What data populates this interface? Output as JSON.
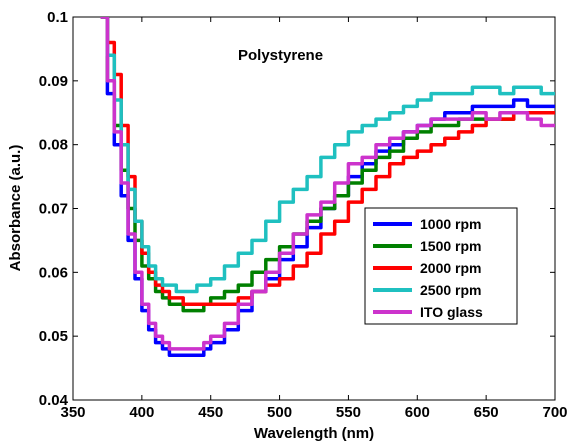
{
  "chart_data": {
    "type": "line",
    "title": "",
    "annotation": "Polystyrene",
    "xlabel": "Wavelength (nm)",
    "ylabel": "Absorbance (a.u.)",
    "xlim": [
      350,
      700
    ],
    "ylim": [
      0.04,
      0.1
    ],
    "xticks": [
      "350",
      "400",
      "450",
      "500",
      "550",
      "600",
      "650",
      "700"
    ],
    "yticks": [
      "0.04",
      "0.05",
      "0.06",
      "0.07",
      "0.08",
      "0.09",
      "0.1"
    ],
    "grid": false,
    "legend_position": "center-right",
    "series": [
      {
        "name": "1000 rpm",
        "color": "#0000ff",
        "x": [
          370,
          375,
          380,
          385,
          390,
          395,
          400,
          405,
          410,
          415,
          420,
          425,
          430,
          435,
          440,
          445,
          450,
          460,
          470,
          480,
          490,
          500,
          510,
          520,
          530,
          540,
          550,
          560,
          570,
          580,
          590,
          600,
          610,
          620,
          630,
          640,
          650,
          660,
          670,
          680,
          690,
          700
        ],
        "y": [
          0.1,
          0.088,
          0.08,
          0.072,
          0.065,
          0.059,
          0.054,
          0.051,
          0.049,
          0.048,
          0.047,
          0.047,
          0.047,
          0.047,
          0.047,
          0.048,
          0.049,
          0.051,
          0.054,
          0.057,
          0.059,
          0.062,
          0.064,
          0.067,
          0.07,
          0.072,
          0.075,
          0.077,
          0.079,
          0.08,
          0.082,
          0.083,
          0.084,
          0.085,
          0.085,
          0.086,
          0.086,
          0.086,
          0.087,
          0.086,
          0.086,
          0.086
        ]
      },
      {
        "name": "1500 rpm",
        "color": "#008000",
        "x": [
          370,
          375,
          380,
          385,
          390,
          395,
          400,
          405,
          410,
          415,
          420,
          425,
          430,
          435,
          440,
          445,
          450,
          460,
          470,
          480,
          490,
          500,
          510,
          520,
          530,
          540,
          550,
          560,
          570,
          580,
          590,
          600,
          610,
          620,
          630,
          640,
          650,
          660,
          670,
          680,
          690,
          700
        ],
        "y": [
          0.1,
          0.09,
          0.083,
          0.076,
          0.07,
          0.065,
          0.061,
          0.059,
          0.057,
          0.056,
          0.055,
          0.055,
          0.054,
          0.054,
          0.054,
          0.055,
          0.056,
          0.057,
          0.058,
          0.06,
          0.062,
          0.064,
          0.066,
          0.068,
          0.07,
          0.072,
          0.074,
          0.076,
          0.078,
          0.079,
          0.081,
          0.082,
          0.083,
          0.083,
          0.084,
          0.084,
          0.084,
          0.084,
          0.085,
          0.085,
          0.085,
          0.085
        ]
      },
      {
        "name": "2000 rpm",
        "color": "#ff0000",
        "x": [
          370,
          375,
          380,
          385,
          390,
          395,
          400,
          405,
          410,
          415,
          420,
          425,
          430,
          435,
          440,
          445,
          450,
          460,
          470,
          480,
          490,
          500,
          510,
          520,
          530,
          540,
          550,
          560,
          570,
          580,
          590,
          600,
          610,
          620,
          630,
          640,
          650,
          660,
          670,
          680,
          690,
          700
        ],
        "y": [
          0.1,
          0.096,
          0.091,
          0.083,
          0.075,
          0.068,
          0.063,
          0.06,
          0.058,
          0.057,
          0.056,
          0.056,
          0.055,
          0.055,
          0.055,
          0.055,
          0.055,
          0.055,
          0.056,
          0.057,
          0.058,
          0.059,
          0.061,
          0.063,
          0.066,
          0.068,
          0.071,
          0.073,
          0.075,
          0.077,
          0.078,
          0.079,
          0.08,
          0.081,
          0.082,
          0.083,
          0.084,
          0.084,
          0.085,
          0.085,
          0.085,
          0.085
        ]
      },
      {
        "name": "2500 rpm",
        "color": "#1fc0c0",
        "x": [
          370,
          375,
          380,
          385,
          390,
          395,
          400,
          405,
          410,
          415,
          420,
          425,
          430,
          435,
          440,
          445,
          450,
          460,
          470,
          480,
          490,
          500,
          510,
          520,
          530,
          540,
          550,
          560,
          570,
          580,
          590,
          600,
          610,
          620,
          630,
          640,
          650,
          660,
          670,
          680,
          690,
          700
        ],
        "y": [
          0.1,
          0.094,
          0.087,
          0.08,
          0.073,
          0.068,
          0.064,
          0.061,
          0.059,
          0.058,
          0.058,
          0.057,
          0.057,
          0.057,
          0.058,
          0.058,
          0.059,
          0.061,
          0.063,
          0.065,
          0.068,
          0.071,
          0.073,
          0.075,
          0.078,
          0.08,
          0.082,
          0.083,
          0.084,
          0.085,
          0.086,
          0.087,
          0.088,
          0.088,
          0.088,
          0.089,
          0.089,
          0.088,
          0.089,
          0.089,
          0.088,
          0.088
        ]
      },
      {
        "name": "ITO glass",
        "color": "#cc33cc",
        "x": [
          370,
          375,
          380,
          385,
          390,
          395,
          400,
          405,
          410,
          415,
          420,
          425,
          430,
          435,
          440,
          445,
          450,
          460,
          470,
          480,
          490,
          500,
          510,
          520,
          530,
          540,
          550,
          560,
          570,
          580,
          590,
          600,
          610,
          620,
          630,
          640,
          650,
          660,
          670,
          680,
          690,
          700
        ],
        "y": [
          0.1,
          0.09,
          0.082,
          0.074,
          0.066,
          0.06,
          0.055,
          0.052,
          0.05,
          0.049,
          0.048,
          0.048,
          0.048,
          0.048,
          0.048,
          0.049,
          0.05,
          0.052,
          0.055,
          0.057,
          0.06,
          0.063,
          0.066,
          0.069,
          0.071,
          0.074,
          0.077,
          0.078,
          0.08,
          0.081,
          0.082,
          0.083,
          0.084,
          0.084,
          0.084,
          0.085,
          0.084,
          0.085,
          0.085,
          0.084,
          0.083,
          0.083
        ]
      }
    ]
  }
}
